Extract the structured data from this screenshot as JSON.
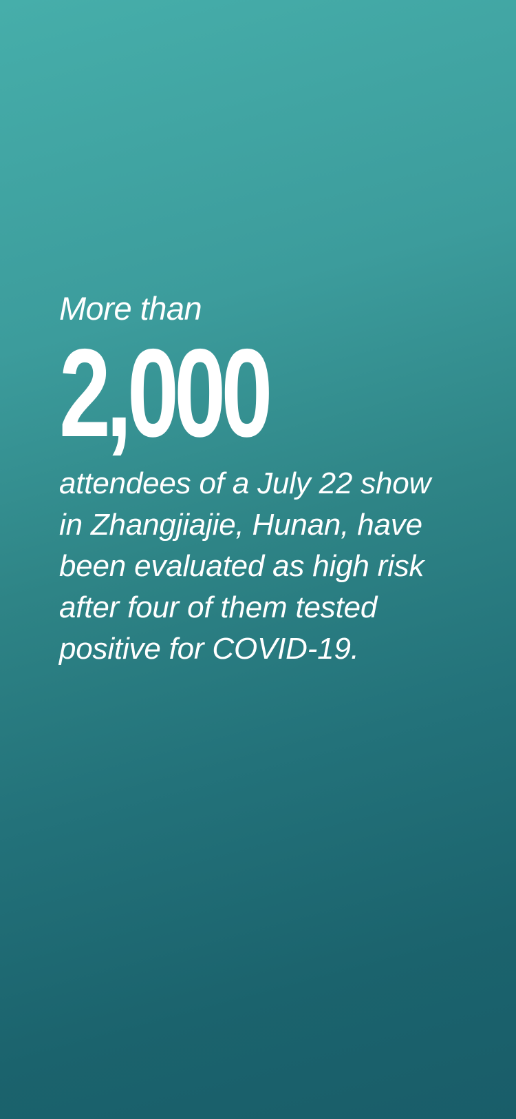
{
  "stat": {
    "intro": "More than",
    "number": "2,000",
    "description_lines": [
      "attendees of a July 22 show",
      "in Zhangjiajie, Hunan, have",
      "been evaluated as high risk",
      "after four of them tested",
      "positive for COVID-19."
    ]
  },
  "colors": {
    "background_top": "#46aeaa",
    "background_bottom": "#195d69",
    "text": "#ffffff"
  }
}
